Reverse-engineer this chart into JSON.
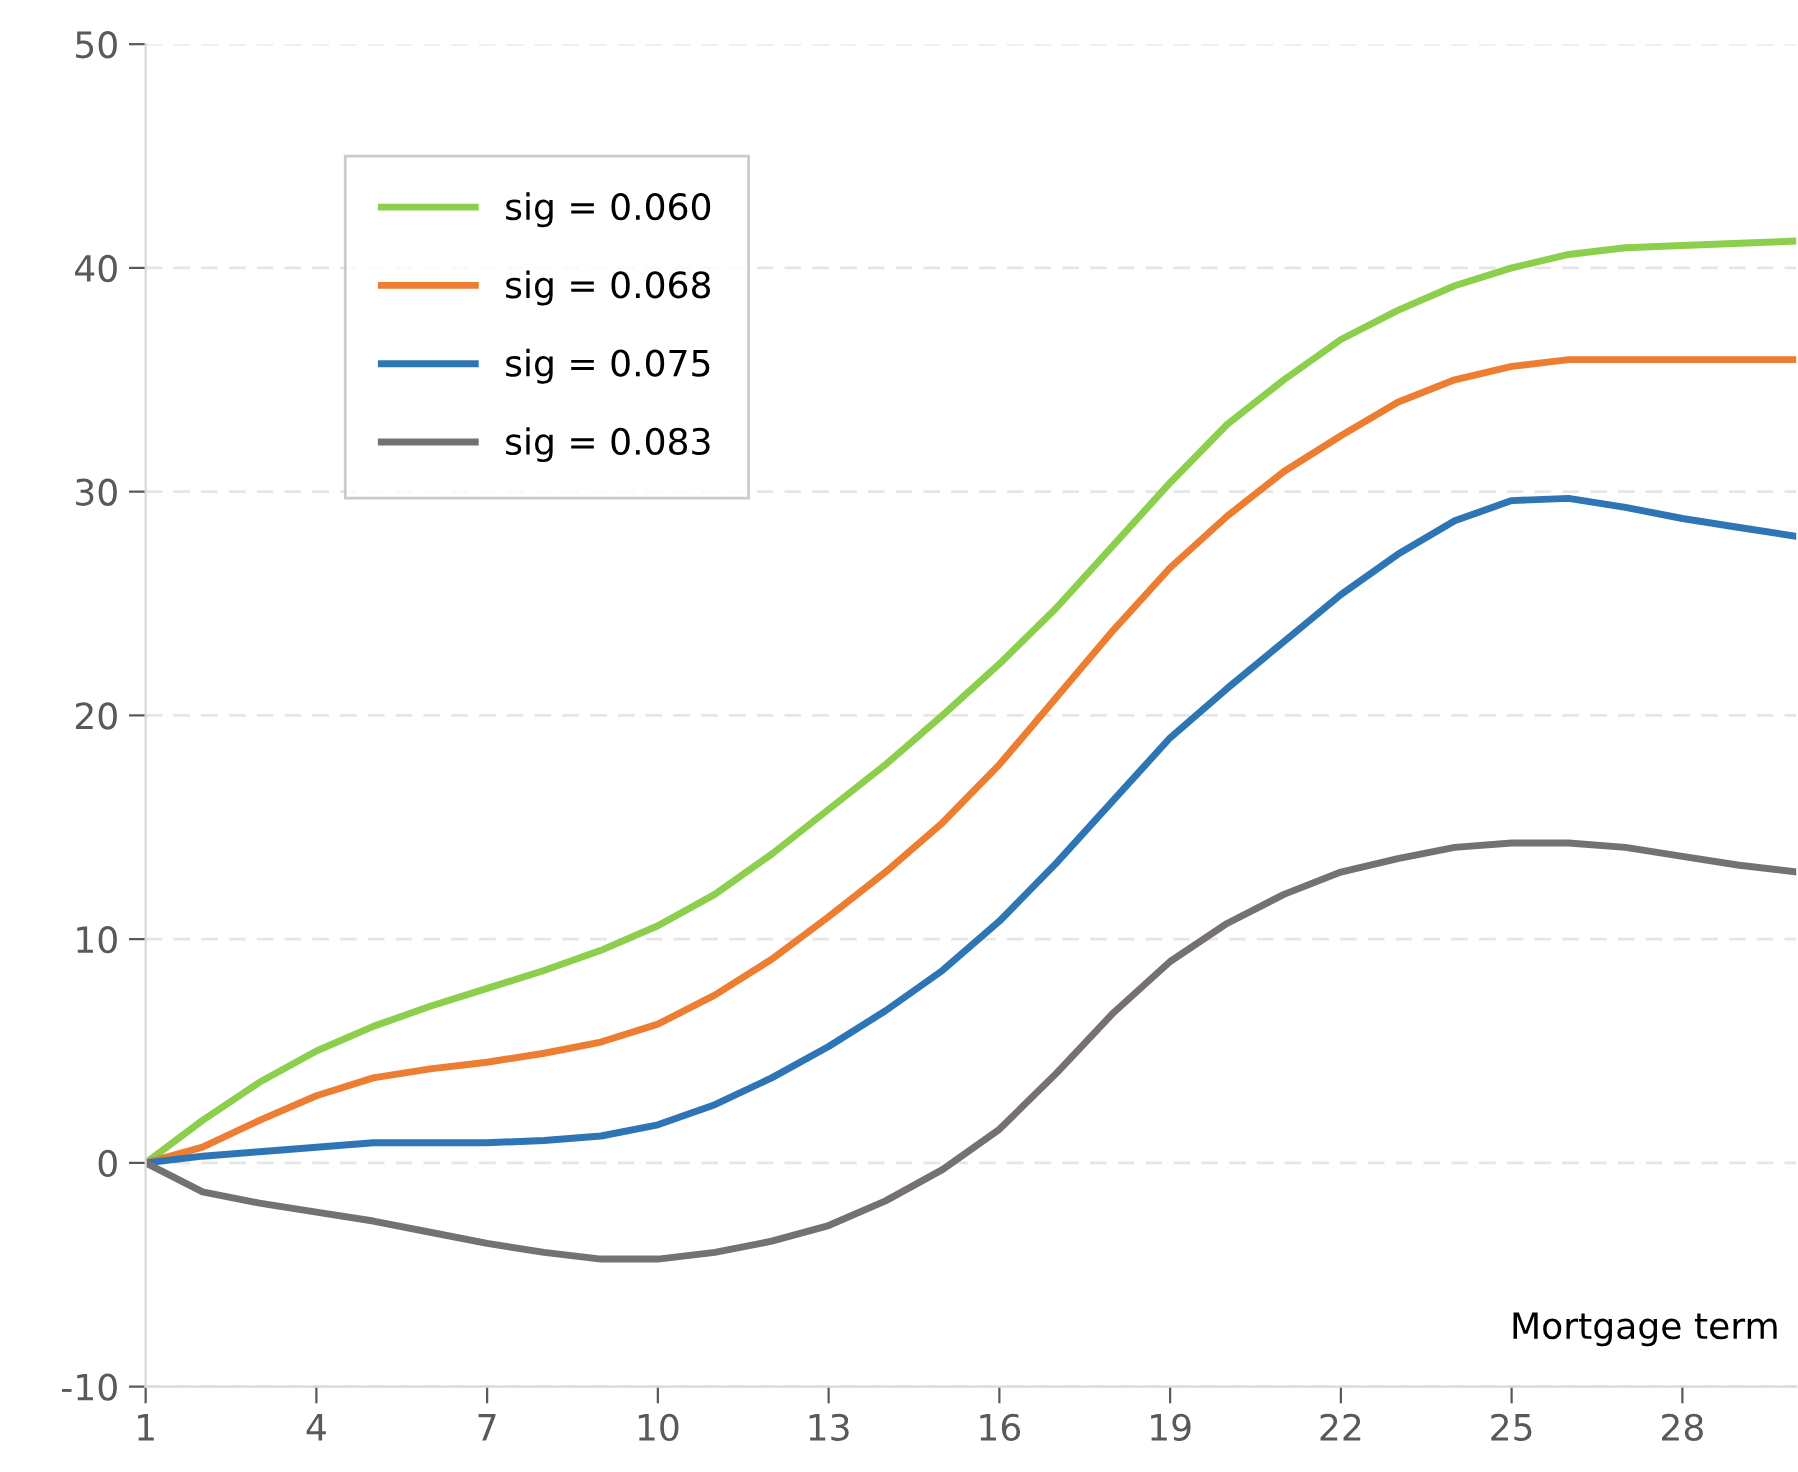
{
  "chart_data": {
    "type": "line",
    "xlabel": "Mortgage term",
    "x": [
      1,
      2,
      3,
      4,
      5,
      6,
      7,
      8,
      9,
      10,
      11,
      12,
      13,
      14,
      15,
      16,
      17,
      18,
      19,
      20,
      21,
      22,
      23,
      24,
      25,
      26,
      27,
      28,
      29,
      30
    ],
    "series": [
      {
        "name": "sig = 0.060",
        "color": "#8ccf4d",
        "values": [
          0,
          1.9,
          3.6,
          5.0,
          6.1,
          7.0,
          7.8,
          8.6,
          9.5,
          10.6,
          12.0,
          13.8,
          15.8,
          17.8,
          20.0,
          22.3,
          24.8,
          27.6,
          30.4,
          33.0,
          35.0,
          36.8,
          38.1,
          39.2,
          40.0,
          40.6,
          40.9,
          41.0,
          41.1,
          41.2
        ]
      },
      {
        "name": "sig = 0.068",
        "color": "#ed7d31",
        "values": [
          0,
          0.7,
          1.9,
          3.0,
          3.8,
          4.2,
          4.5,
          4.9,
          5.4,
          6.2,
          7.5,
          9.1,
          11.0,
          13.0,
          15.2,
          17.8,
          20.8,
          23.8,
          26.6,
          28.9,
          30.9,
          32.5,
          34.0,
          35.0,
          35.6,
          35.9,
          35.9,
          35.9,
          35.9,
          35.9
        ]
      },
      {
        "name": "sig = 0.075",
        "color": "#2e75b6",
        "values": [
          0,
          0.3,
          0.5,
          0.7,
          0.9,
          0.9,
          0.9,
          1.0,
          1.2,
          1.7,
          2.6,
          3.8,
          5.2,
          6.8,
          8.6,
          10.8,
          13.4,
          16.2,
          19.0,
          21.2,
          23.3,
          25.4,
          27.2,
          28.7,
          29.6,
          29.7,
          29.3,
          28.8,
          28.4,
          28.0
        ]
      },
      {
        "name": "sig = 0.083",
        "color": "#767171",
        "values": [
          0,
          -1.3,
          -1.8,
          -2.2,
          -2.6,
          -3.1,
          -3.6,
          -4.0,
          -4.3,
          -4.3,
          -4.0,
          -3.5,
          -2.8,
          -1.7,
          -0.3,
          1.5,
          4.0,
          6.7,
          9.0,
          10.7,
          12.0,
          13.0,
          13.6,
          14.1,
          14.3,
          14.3,
          14.1,
          13.7,
          13.3,
          13.0
        ]
      }
    ],
    "xlim": [
      1,
      30
    ],
    "xticks": [
      1,
      4,
      7,
      10,
      13,
      16,
      19,
      22,
      25,
      28
    ],
    "ylim": [
      -10,
      50
    ],
    "yticks": [
      -10,
      0,
      10,
      20,
      30,
      40,
      50
    ],
    "grid": "y",
    "legend": "top left",
    "marker": "none",
    "line_style": "solid"
  }
}
